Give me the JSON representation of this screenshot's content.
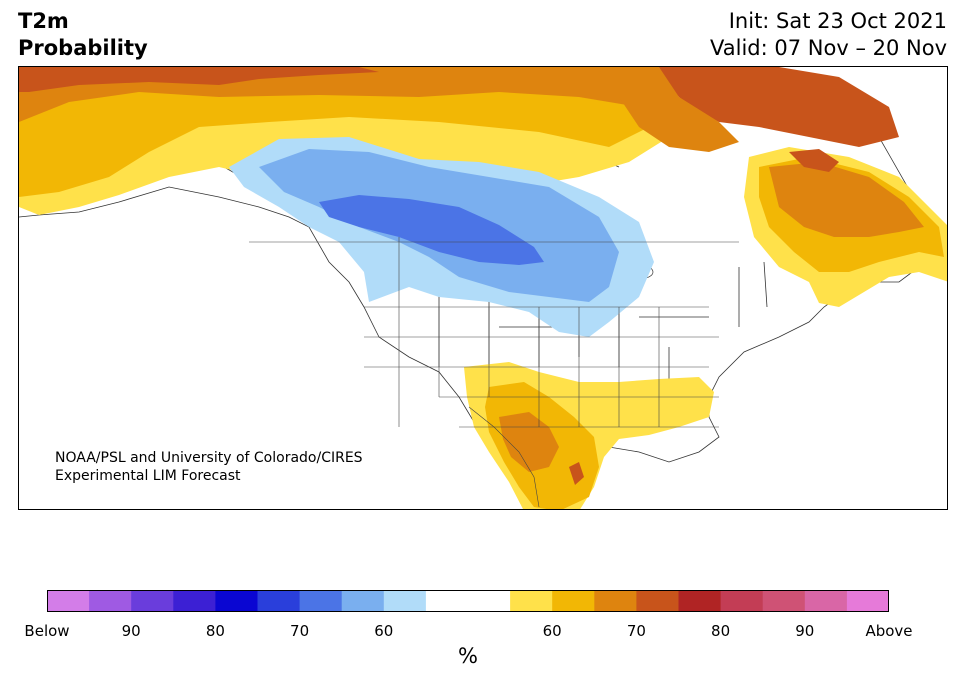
{
  "header": {
    "variable": "T2m",
    "subtitle": "Probability",
    "init": "Init: Sat 23 Oct 2021",
    "valid": "Valid: 07 Nov – 20 Nov"
  },
  "credit": {
    "line1": "NOAA/PSL and University of Colorado/CIRES",
    "line2": "Experimental LIM Forecast"
  },
  "legend": {
    "unit": "%",
    "colors": [
      "#d37de8",
      "#9f5ae3",
      "#6a3ddc",
      "#3c20d4",
      "#0a06d2",
      "#2a3fdb",
      "#4b74e6",
      "#7aafef",
      "#b1dcf9",
      "#ffffff",
      "#ffe14a",
      "#f2b705",
      "#de840f",
      "#c8541b",
      "#b02424",
      "#c33d55",
      "#cf5275",
      "#d966a6",
      "#e67ad9"
    ],
    "tick_labels": [
      "Below",
      "90",
      "80",
      "70",
      "60",
      "",
      "60",
      "70",
      "80",
      "90",
      "Above"
    ]
  },
  "map": {
    "regions": [
      {
        "category": "above-60",
        "color": "#ffe14a"
      },
      {
        "category": "above-70",
        "color": "#f2b705"
      },
      {
        "category": "above-80",
        "color": "#de840f"
      },
      {
        "category": "above-90",
        "color": "#c8541b"
      },
      {
        "category": "below-60",
        "color": "#b1dcf9"
      },
      {
        "category": "below-70",
        "color": "#7aafef"
      },
      {
        "category": "below-80",
        "color": "#4b74e6"
      }
    ]
  }
}
